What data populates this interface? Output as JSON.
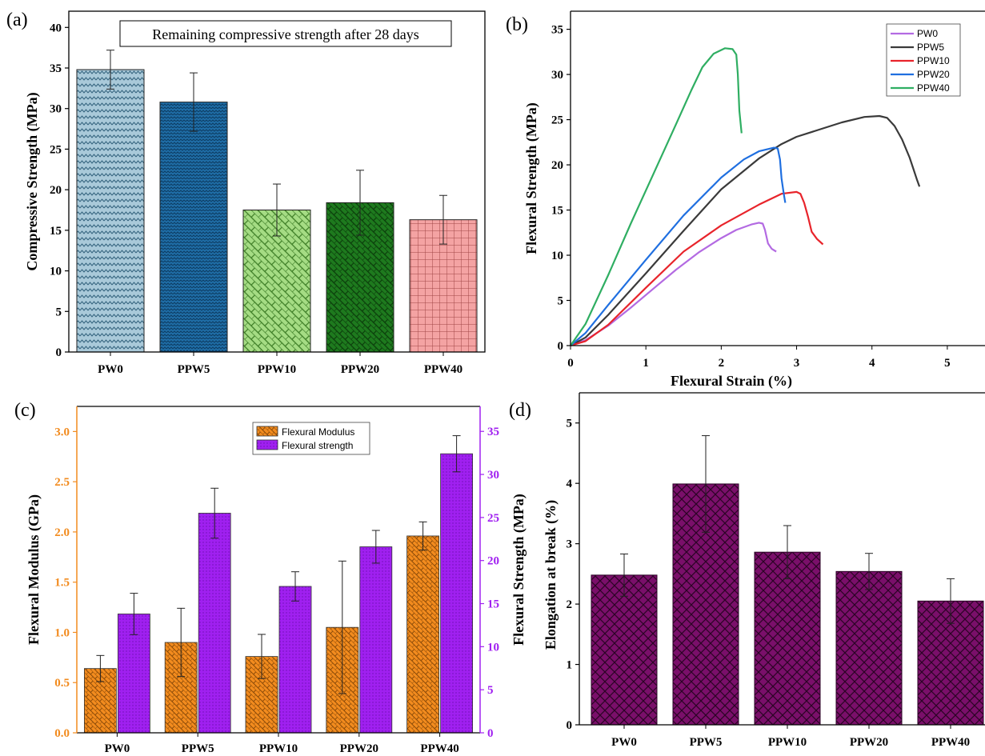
{
  "chart_data": [
    {
      "type": "bar",
      "panel_label": "(a)",
      "annotation": "Remaining compressive strength after 28 days",
      "ylabel": "Compressive Strength (MPa)",
      "xlabel": "",
      "ylim": [
        0,
        42
      ],
      "yticks": [
        "0",
        "5",
        "10",
        "15",
        "20",
        "25",
        "30",
        "35",
        "40"
      ],
      "categories": [
        "PW0",
        "PPW5",
        "PPW10",
        "PPW20",
        "PPW40"
      ],
      "values": [
        34.8,
        30.8,
        17.5,
        18.4,
        16.3
      ],
      "errors": [
        2.4,
        3.6,
        3.2,
        4.0,
        3.0
      ],
      "colors": [
        "#a9c9d9",
        "#1f6da6",
        "#a5dc84",
        "#1e7a1e",
        "#f4a3a3"
      ]
    },
    {
      "type": "line",
      "panel_label": "(b)",
      "xlabel": "Flexural Strain (%)",
      "ylabel": "Flexural Strength (MPa)",
      "xlim": [
        0,
        5.5
      ],
      "ylim": [
        0,
        37
      ],
      "xticks": [
        "0",
        "1",
        "2",
        "3",
        "4",
        "5"
      ],
      "yticks": [
        "0",
        "5",
        "10",
        "15",
        "20",
        "25",
        "30",
        "35"
      ],
      "legend_position": "top-right",
      "series": [
        {
          "name": "PW0",
          "color": "#b36ae2",
          "points": [
            [
              0,
              0
            ],
            [
              0.2,
              0.6
            ],
            [
              0.5,
              2.2
            ],
            [
              0.8,
              4.2
            ],
            [
              1.1,
              6.3
            ],
            [
              1.4,
              8.4
            ],
            [
              1.7,
              10.3
            ],
            [
              2.0,
              11.9
            ],
            [
              2.2,
              12.8
            ],
            [
              2.4,
              13.4
            ],
            [
              2.5,
              13.6
            ],
            [
              2.55,
              13.5
            ],
            [
              2.58,
              12.8
            ],
            [
              2.62,
              11.3
            ],
            [
              2.67,
              10.7
            ],
            [
              2.73,
              10.4
            ]
          ]
        },
        {
          "name": "PPW5",
          "color": "#3a3a3a",
          "points": [
            [
              0,
              0
            ],
            [
              0.2,
              0.9
            ],
            [
              0.5,
              3.4
            ],
            [
              1.0,
              8.0
            ],
            [
              1.5,
              12.7
            ],
            [
              2.0,
              17.3
            ],
            [
              2.5,
              20.7
            ],
            [
              2.8,
              22.3
            ],
            [
              3.0,
              23.1
            ],
            [
              3.3,
              23.9
            ],
            [
              3.6,
              24.7
            ],
            [
              3.9,
              25.3
            ],
            [
              4.1,
              25.4
            ],
            [
              4.2,
              25.2
            ],
            [
              4.3,
              24.3
            ],
            [
              4.4,
              22.8
            ],
            [
              4.5,
              20.8
            ],
            [
              4.6,
              18.3
            ],
            [
              4.63,
              17.6
            ]
          ]
        },
        {
          "name": "PPW10",
          "color": "#e8242b",
          "points": [
            [
              0,
              0
            ],
            [
              0.2,
              0.5
            ],
            [
              0.5,
              2.3
            ],
            [
              1.0,
              6.4
            ],
            [
              1.5,
              10.4
            ],
            [
              2.0,
              13.3
            ],
            [
              2.5,
              15.6
            ],
            [
              2.8,
              16.8
            ],
            [
              3.0,
              17.0
            ],
            [
              3.05,
              16.8
            ],
            [
              3.1,
              15.8
            ],
            [
              3.15,
              14.3
            ],
            [
              3.2,
              12.6
            ],
            [
              3.27,
              11.8
            ],
            [
              3.35,
              11.2
            ]
          ]
        },
        {
          "name": "PPW20",
          "color": "#1f6fe0",
          "points": [
            [
              0,
              0
            ],
            [
              0.2,
              1.4
            ],
            [
              0.5,
              4.5
            ],
            [
              1.0,
              9.5
            ],
            [
              1.5,
              14.4
            ],
            [
              2.0,
              18.6
            ],
            [
              2.3,
              20.6
            ],
            [
              2.5,
              21.5
            ],
            [
              2.7,
              21.9
            ],
            [
              2.75,
              21.8
            ],
            [
              2.78,
              20.6
            ],
            [
              2.8,
              18.5
            ],
            [
              2.83,
              16.8
            ],
            [
              2.85,
              15.8
            ]
          ]
        },
        {
          "name": "PPW40",
          "color": "#2fae62",
          "points": [
            [
              0,
              0
            ],
            [
              0.2,
              2.4
            ],
            [
              0.5,
              7.8
            ],
            [
              0.8,
              13.5
            ],
            [
              1.1,
              19.0
            ],
            [
              1.4,
              24.5
            ],
            [
              1.6,
              28.2
            ],
            [
              1.75,
              30.8
            ],
            [
              1.9,
              32.3
            ],
            [
              2.05,
              32.9
            ],
            [
              2.15,
              32.8
            ],
            [
              2.2,
              32.2
            ],
            [
              2.22,
              30.0
            ],
            [
              2.24,
              26.0
            ],
            [
              2.27,
              23.5
            ]
          ]
        }
      ]
    },
    {
      "type": "bar",
      "panel_label": "(c)",
      "ylabel": "Flexural Modulus (GPa)",
      "ylabel_right": "Flexural Strength (MPa)",
      "ylim": [
        0,
        3.25
      ],
      "ylim_right": [
        0,
        37.9
      ],
      "yticks": [
        "0.0",
        "0.5",
        "1.0",
        "1.5",
        "2.0",
        "2.5",
        "3.0"
      ],
      "yticks_right": [
        "0",
        "5",
        "10",
        "15",
        "20",
        "25",
        "30",
        "35"
      ],
      "left_axis_color": "#f28b1e",
      "right_axis_color": "#a020f0",
      "legend_position": "top-center",
      "categories": [
        "PW0",
        "PPW5",
        "PPW10",
        "PPW20",
        "PPW40"
      ],
      "series": [
        {
          "name": "Flexural Modulus",
          "axis": "left",
          "color": "#f28b1e",
          "values": [
            0.64,
            0.9,
            0.76,
            1.05,
            1.96
          ],
          "errors": [
            0.13,
            0.34,
            0.22,
            0.66,
            0.14
          ]
        },
        {
          "name": "Flexural strength",
          "axis": "right",
          "color": "#a020f0",
          "values": [
            13.8,
            25.5,
            17.0,
            21.6,
            32.4
          ],
          "errors": [
            2.4,
            2.9,
            1.7,
            1.9,
            2.1
          ]
        }
      ]
    },
    {
      "type": "bar",
      "panel_label": "(d)",
      "ylabel": "Elongation at break (%)",
      "ylim": [
        0,
        5.5
      ],
      "yticks": [
        "0",
        "1",
        "2",
        "3",
        "4",
        "5"
      ],
      "categories": [
        "PW0",
        "PPW5",
        "PPW10",
        "PPW20",
        "PPW40"
      ],
      "values": [
        2.48,
        3.99,
        2.86,
        2.54,
        2.05
      ],
      "errors": [
        0.35,
        0.8,
        0.44,
        0.3,
        0.37
      ],
      "colors": [
        "#7a0f6a",
        "#7a0f6a",
        "#7a0f6a",
        "#7a0f6a",
        "#7a0f6a"
      ]
    }
  ]
}
